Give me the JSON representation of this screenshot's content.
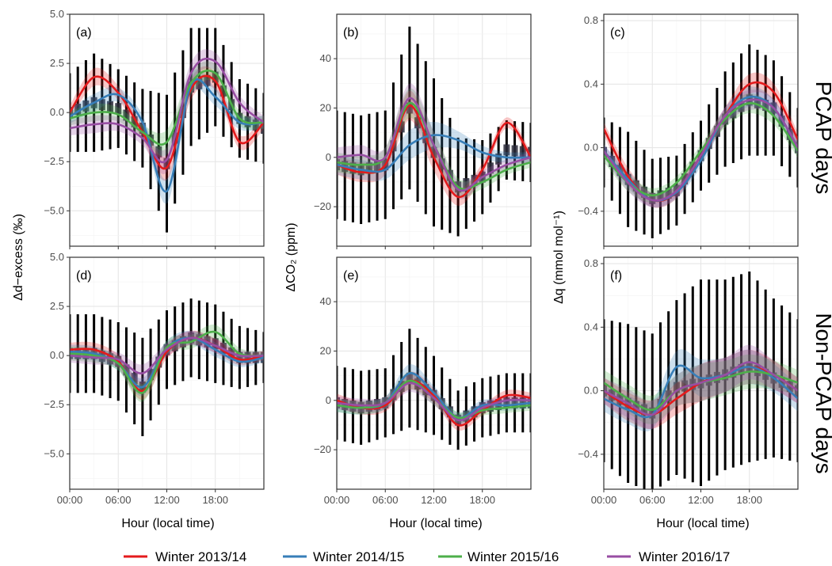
{
  "legend": {
    "items": [
      {
        "label": "Winter 2013/14",
        "color": "#e41a1c"
      },
      {
        "label": "Winter 2014/15",
        "color": "#377eb8"
      },
      {
        "label": "Winter 2015/16",
        "color": "#4daf4a"
      },
      {
        "label": "Winter 2016/17",
        "color": "#984ea3"
      }
    ]
  },
  "rows": {
    "top": "PCAP days",
    "bottom": "Non-PCAP days"
  },
  "xlabel": "Hour (local time)",
  "x_ticks": [
    {
      "v": 0,
      "label": "00:00"
    },
    {
      "v": 6,
      "label": "06:00"
    },
    {
      "v": 12,
      "label": "12:00"
    },
    {
      "v": 18,
      "label": "18:00"
    }
  ],
  "columns": [
    {
      "ylabel": "Δd−excess (‰)",
      "ylim": [
        -6.8,
        5.0
      ],
      "yticks": [
        -5.0,
        -2.5,
        0.0,
        2.5,
        5.0
      ],
      "tick_labels": [
        "−5.0",
        "−2.5",
        "0.0",
        "2.5",
        "5.0"
      ]
    },
    {
      "ylabel": "ΔCO₂ (ppm)",
      "ylim": [
        -36,
        58
      ],
      "yticks": [
        -20,
        0,
        20,
        40
      ],
      "tick_labels": [
        "−20",
        "0",
        "20",
        "40"
      ]
    },
    {
      "ylabel": "Δq (mmol mol⁻¹)",
      "ylim": [
        -0.62,
        0.84
      ],
      "yticks": [
        -0.4,
        0.0,
        0.4,
        0.8
      ],
      "tick_labels": [
        "−0.4",
        "0.0",
        "0.4",
        "0.8"
      ]
    }
  ],
  "chart_data": [
    {
      "type": "line",
      "panel": "(a)",
      "row": "PCAP days",
      "col": 0,
      "x_unit": "hour",
      "x": [
        0,
        3,
        6,
        9,
        12,
        15,
        18,
        21,
        24
      ],
      "xlim": [
        0,
        24
      ],
      "ylim": [
        -6.8,
        5.0
      ],
      "series": [
        {
          "name": "Winter 2013/14",
          "values": [
            0.0,
            1.8,
            1.0,
            -1.0,
            -2.8,
            1.2,
            1.6,
            -1.5,
            -0.5
          ]
        },
        {
          "name": "Winter 2014/15",
          "values": [
            -0.2,
            0.5,
            0.9,
            -0.5,
            -4.0,
            1.4,
            0.8,
            -0.5,
            -0.5
          ]
        },
        {
          "name": "Winter 2015/16",
          "values": [
            -0.3,
            0.0,
            -0.1,
            -1.0,
            -1.5,
            1.5,
            2.0,
            -0.3,
            -0.5
          ]
        },
        {
          "name": "Winter 2016/17",
          "values": [
            -0.8,
            -0.6,
            -0.6,
            -1.3,
            -2.4,
            2.0,
            2.6,
            0.5,
            -0.5
          ]
        }
      ],
      "mean": [
        0.0,
        0.5,
        0.2,
        -0.8,
        -2.6,
        1.3,
        1.8,
        -0.3,
        -0.8
      ],
      "spread": [
        2.0,
        2.5,
        2.0,
        2.0,
        3.5,
        3.0,
        2.5,
        2.0,
        1.8
      ]
    },
    {
      "type": "line",
      "panel": "(b)",
      "row": "PCAP days",
      "col": 1,
      "x_unit": "hour",
      "x": [
        0,
        3,
        6,
        9,
        12,
        15,
        18,
        21,
        24
      ],
      "xlim": [
        0,
        24
      ],
      "ylim": [
        -36,
        58
      ],
      "series": [
        {
          "name": "Winter 2013/14",
          "values": [
            -3,
            -6,
            -3,
            21,
            0,
            -16,
            -5,
            14,
            0
          ]
        },
        {
          "name": "Winter 2014/15",
          "values": [
            -3,
            -5,
            -5,
            5,
            9,
            7,
            2,
            0,
            0
          ]
        },
        {
          "name": "Winter 2015/16",
          "values": [
            -2,
            -3,
            0,
            22,
            5,
            -12,
            -10,
            -5,
            -2
          ]
        },
        {
          "name": "Winter 2016/17",
          "values": [
            0,
            1,
            0,
            24,
            5,
            -13,
            -8,
            -3,
            0
          ]
        }
      ],
      "mean": [
        -3,
        -5,
        -3,
        20,
        2,
        -12,
        -8,
        3,
        2
      ],
      "spread": [
        22,
        22,
        22,
        33,
        30,
        20,
        15,
        12,
        12
      ]
    },
    {
      "type": "line",
      "panel": "(c)",
      "row": "PCAP days",
      "col": 2,
      "x_unit": "hour",
      "x": [
        0,
        3,
        6,
        9,
        12,
        15,
        18,
        21,
        24
      ],
      "xlim": [
        0,
        24
      ],
      "ylim": [
        -0.62,
        0.84
      ],
      "series": [
        {
          "name": "Winter 2013/14",
          "values": [
            0.12,
            -0.18,
            -0.33,
            -0.28,
            -0.05,
            0.2,
            0.4,
            0.35,
            0.05
          ]
        },
        {
          "name": "Winter 2014/15",
          "values": [
            -0.02,
            -0.2,
            -0.33,
            -0.28,
            -0.08,
            0.2,
            0.32,
            0.25,
            0.0
          ]
        },
        {
          "name": "Winter 2015/16",
          "values": [
            -0.05,
            -0.22,
            -0.3,
            -0.22,
            -0.02,
            0.18,
            0.28,
            0.2,
            -0.02
          ]
        },
        {
          "name": "Winter 2016/17",
          "values": [
            -0.02,
            -0.22,
            -0.33,
            -0.27,
            -0.05,
            0.2,
            0.3,
            0.25,
            0.0
          ]
        }
      ],
      "mean": [
        -0.03,
        -0.2,
        -0.32,
        -0.27,
        -0.05,
        0.18,
        0.3,
        0.25,
        0.0
      ],
      "spread": [
        0.22,
        0.3,
        0.25,
        0.22,
        0.22,
        0.3,
        0.35,
        0.3,
        0.25
      ]
    },
    {
      "type": "line",
      "panel": "(d)",
      "row": "Non-PCAP days",
      "col": 0,
      "x_unit": "hour",
      "x": [
        0,
        3,
        6,
        9,
        12,
        15,
        18,
        21,
        24
      ],
      "xlim": [
        0,
        24
      ],
      "ylim": [
        -6.8,
        5.0
      ],
      "series": [
        {
          "name": "Winter 2013/14",
          "values": [
            0.3,
            0.3,
            -0.3,
            -1.8,
            0.2,
            0.9,
            0.5,
            -0.2,
            0.0
          ]
        },
        {
          "name": "Winter 2014/15",
          "values": [
            0.2,
            0.1,
            -0.4,
            -1.6,
            0.4,
            0.9,
            0.3,
            -0.3,
            -0.1
          ]
        },
        {
          "name": "Winter 2015/16",
          "values": [
            0.1,
            0.0,
            -0.4,
            -1.9,
            0.4,
            0.7,
            1.2,
            0.1,
            0.0
          ]
        },
        {
          "name": "Winter 2016/17",
          "values": [
            0.0,
            -0.1,
            -0.2,
            -0.9,
            0.3,
            0.9,
            0.5,
            0.0,
            0.0
          ]
        }
      ],
      "mean": [
        0.1,
        0.1,
        -0.3,
        -1.6,
        0.3,
        0.9,
        0.6,
        -0.1,
        -0.1
      ],
      "spread": [
        2.0,
        2.0,
        2.0,
        2.5,
        2.0,
        2.0,
        2.0,
        1.6,
        1.3
      ]
    },
    {
      "type": "line",
      "panel": "(e)",
      "row": "Non-PCAP days",
      "col": 1,
      "x_unit": "hour",
      "x": [
        0,
        3,
        6,
        9,
        12,
        15,
        18,
        21,
        24
      ],
      "xlim": [
        0,
        24
      ],
      "ylim": [
        -36,
        58
      ],
      "series": [
        {
          "name": "Winter 2013/14",
          "values": [
            0,
            -3,
            -2,
            8,
            2,
            -10,
            -4,
            2,
            1
          ]
        },
        {
          "name": "Winter 2014/15",
          "values": [
            -2,
            -3,
            -1,
            11,
            3,
            -7,
            -2,
            -2,
            -1
          ]
        },
        {
          "name": "Winter 2015/16",
          "values": [
            -2,
            -3,
            -1,
            8,
            1,
            -7,
            -4,
            -3,
            -2
          ]
        },
        {
          "name": "Winter 2016/17",
          "values": [
            -1,
            -2,
            -1,
            7,
            1,
            -8,
            -3,
            0,
            0
          ]
        }
      ],
      "mean": [
        -1,
        -3,
        -1,
        9,
        2,
        -8,
        -3,
        -1,
        -1
      ],
      "spread": [
        15,
        15,
        14,
        20,
        16,
        12,
        12,
        12,
        12
      ]
    },
    {
      "type": "line",
      "panel": "(f)",
      "row": "Non-PCAP days",
      "col": 2,
      "x_unit": "hour",
      "x": [
        0,
        3,
        6,
        9,
        12,
        15,
        18,
        21,
        24
      ],
      "xlim": [
        0,
        24
      ],
      "ylim": [
        -0.62,
        0.84
      ],
      "series": [
        {
          "name": "Winter 2013/14",
          "values": [
            0.0,
            -0.1,
            -0.15,
            -0.05,
            0.05,
            0.1,
            0.15,
            0.1,
            0.0
          ]
        },
        {
          "name": "Winter 2014/15",
          "values": [
            -0.05,
            -0.12,
            -0.15,
            0.15,
            0.08,
            0.1,
            0.15,
            0.08,
            -0.05
          ]
        },
        {
          "name": "Winter 2015/16",
          "values": [
            0.05,
            -0.05,
            -0.12,
            0.0,
            0.05,
            0.08,
            0.12,
            0.1,
            0.05
          ]
        },
        {
          "name": "Winter 2016/17",
          "values": [
            0.0,
            -0.08,
            -0.15,
            0.0,
            0.05,
            0.1,
            0.18,
            0.1,
            0.0
          ]
        }
      ],
      "mean": [
        0.0,
        -0.08,
        -0.14,
        0.02,
        0.05,
        0.1,
        0.15,
        0.08,
        0.0
      ],
      "spread": [
        0.45,
        0.5,
        0.5,
        0.55,
        0.65,
        0.6,
        0.6,
        0.5,
        0.45
      ]
    }
  ]
}
